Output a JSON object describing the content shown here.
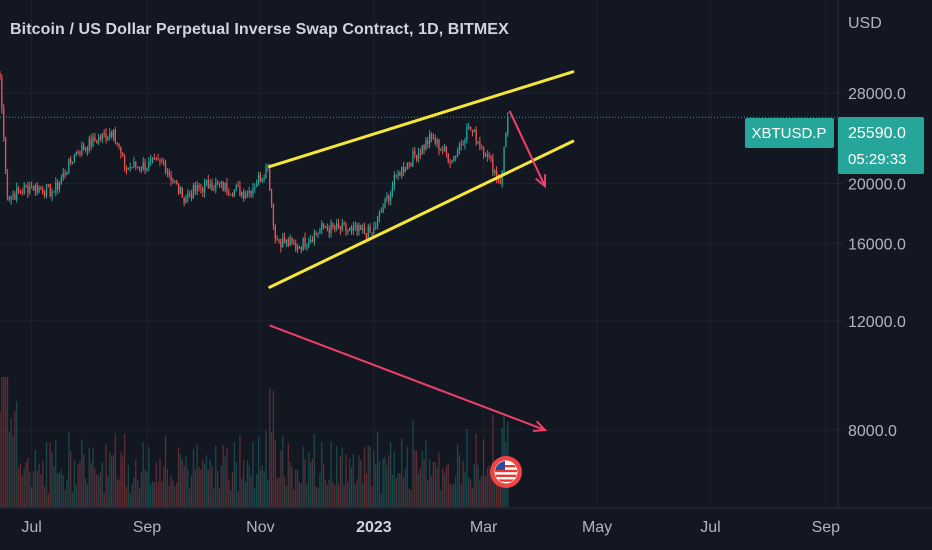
{
  "header": {
    "title": "Bitcoin / US Dollar Perpetual Inverse Swap Contract, 1D, BITMEX",
    "currency": "USD"
  },
  "price_axis": {
    "labels": [
      "28000.0",
      "20000.0",
      "16000.0",
      "12000.0",
      "8000.0"
    ]
  },
  "time_axis": {
    "labels": [
      "Jul",
      "Sep",
      "Nov",
      "2023",
      "Mar",
      "May",
      "Jul",
      "Sep"
    ]
  },
  "last_price": {
    "symbol": "XBTUSD.P",
    "price": "25590.0",
    "countdown": "05:29:33",
    "color": "#26a69a"
  },
  "colors": {
    "background": "#131722",
    "up": "#26a69a",
    "down": "#ef5350",
    "channel": "#f5e63a",
    "arrow": "#f23f6b",
    "text": "#b2b5be"
  },
  "flag_icon": "us-flag-icon",
  "chart_data": {
    "type": "candlestick",
    "symbol": "XBTUSD.P",
    "interval": "1D",
    "exchange": "BITMEX",
    "y_scale": "log",
    "y_ticks": [
      28000,
      20000,
      16000,
      12000,
      8000
    ],
    "x_ticks": [
      "Jul",
      "Sep",
      "Nov",
      "2023",
      "Mar",
      "May",
      "Jul",
      "Sep"
    ],
    "x_range": [
      "2022-06-14",
      "2023-09-30"
    ],
    "last_price": 25590.0,
    "price_waypoints": [
      {
        "date": "2022-06-14",
        "close": 29500
      },
      {
        "date": "2022-06-18",
        "close": 19000
      },
      {
        "date": "2022-06-30",
        "close": 19800
      },
      {
        "date": "2022-07-13",
        "close": 19400
      },
      {
        "date": "2022-07-25",
        "close": 22500
      },
      {
        "date": "2022-08-14",
        "close": 24400
      },
      {
        "date": "2022-08-20",
        "close": 21200
      },
      {
        "date": "2022-09-10",
        "close": 21600
      },
      {
        "date": "2022-09-20",
        "close": 19000
      },
      {
        "date": "2022-10-05",
        "close": 20000
      },
      {
        "date": "2022-10-25",
        "close": 19300
      },
      {
        "date": "2022-11-05",
        "close": 21300
      },
      {
        "date": "2022-11-09",
        "close": 16300
      },
      {
        "date": "2022-11-21",
        "close": 15800
      },
      {
        "date": "2022-12-05",
        "close": 17000
      },
      {
        "date": "2022-12-20",
        "close": 16800
      },
      {
        "date": "2022-12-31",
        "close": 16600
      },
      {
        "date": "2023-01-14",
        "close": 20800
      },
      {
        "date": "2023-02-01",
        "close": 23700
      },
      {
        "date": "2023-02-12",
        "close": 21800
      },
      {
        "date": "2023-02-21",
        "close": 24700
      },
      {
        "date": "2023-03-03",
        "close": 22300
      },
      {
        "date": "2023-03-10",
        "close": 20000
      },
      {
        "date": "2023-03-13",
        "close": 24100
      },
      {
        "date": "2023-03-14",
        "close": 25590
      }
    ],
    "volume_note": "daily volume histogram at bottom, colored by candle direction",
    "annotations": [
      {
        "type": "trend_line",
        "color": "#f5e63a",
        "from": {
          "date": "2022-11-06",
          "price": 21300
        },
        "to": {
          "date": "2023-04-18",
          "price": 30300
        }
      },
      {
        "type": "trend_line",
        "color": "#f5e63a",
        "from": {
          "date": "2022-11-06",
          "price": 13600
        },
        "to": {
          "date": "2023-04-18",
          "price": 23400
        }
      },
      {
        "type": "arrow",
        "color": "#f23f6b",
        "from": {
          "date": "2023-03-15",
          "price": 26200
        },
        "to": {
          "date": "2023-04-03",
          "price": 19800
        }
      },
      {
        "type": "arrow",
        "color": "#f23f6b",
        "from": {
          "date": "2022-11-06",
          "price": 11800
        },
        "to": {
          "date": "2023-04-03",
          "price": 8000
        }
      }
    ]
  }
}
